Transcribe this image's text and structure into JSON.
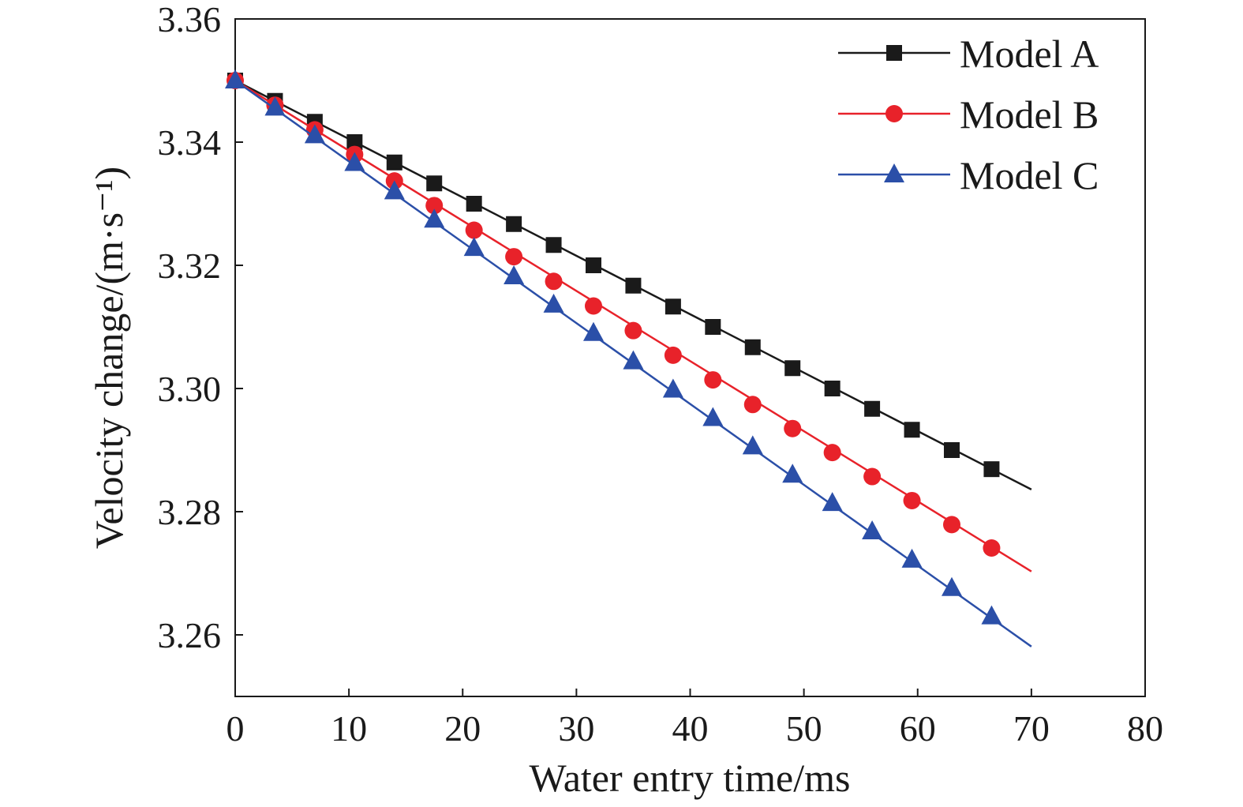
{
  "chart_data": {
    "type": "line",
    "xlabel": "Water entry time/ms",
    "ylabel": "Velocity change/(m·s⁻¹)",
    "xlim": [
      0,
      80
    ],
    "ylim": [
      3.25,
      3.36
    ],
    "xticks": [
      "0",
      "10",
      "20",
      "30",
      "40",
      "50",
      "60",
      "70",
      "80"
    ],
    "yticks": [
      "3.26",
      "3.28",
      "3.30",
      "3.32",
      "3.34",
      "3.36"
    ],
    "grid": false,
    "legend_position": "top-right",
    "series": [
      {
        "name": "Model A",
        "color": "#1a1a1a",
        "marker": "square",
        "line": [
          [
            0,
            3.35
          ],
          [
            70,
            3.2836
          ]
        ],
        "x": [
          0,
          3.5,
          7,
          10.5,
          14,
          17.5,
          21,
          24.5,
          28,
          31.5,
          35,
          38.5,
          42,
          45.5,
          49,
          52.5,
          56,
          59.5,
          63,
          66.5
        ],
        "y": [
          3.35,
          3.3467,
          3.3433,
          3.34,
          3.3367,
          3.3333,
          3.33,
          3.3267,
          3.3233,
          3.32,
          3.3167,
          3.3133,
          3.31,
          3.3067,
          3.3033,
          3.3,
          3.2967,
          3.2933,
          3.29,
          3.2869
        ]
      },
      {
        "name": "Model B",
        "color": "#e8222a",
        "marker": "circle",
        "line": [
          [
            0,
            3.35
          ],
          [
            70,
            3.2703
          ]
        ],
        "x": [
          0,
          3.5,
          7,
          10.5,
          14,
          17.5,
          21,
          24.5,
          28,
          31.5,
          35,
          38.5,
          42,
          45.5,
          49,
          52.5,
          56,
          59.5,
          63,
          66.5
        ],
        "y": [
          3.35,
          3.346,
          3.342,
          3.338,
          3.3337,
          3.3297,
          3.3257,
          3.3214,
          3.3174,
          3.3134,
          3.3094,
          3.3054,
          3.3014,
          3.2974,
          3.2935,
          3.2896,
          3.2857,
          3.2818,
          3.2779,
          3.2741
        ]
      },
      {
        "name": "Model C",
        "color": "#2b4fa8",
        "marker": "triangle",
        "line": [
          [
            0,
            3.35
          ],
          [
            70,
            3.2581
          ]
        ],
        "x": [
          0,
          3.5,
          7,
          10.5,
          14,
          17.5,
          21,
          24.5,
          28,
          31.5,
          35,
          38.5,
          42,
          45.5,
          49,
          52.5,
          56,
          59.5,
          63,
          66.5
        ],
        "y": [
          3.35,
          3.3456,
          3.3411,
          3.3366,
          3.332,
          3.3274,
          3.3228,
          3.3182,
          3.3136,
          3.309,
          3.3044,
          3.2998,
          3.2952,
          3.2906,
          3.286,
          3.2814,
          3.2768,
          3.2722,
          3.2676,
          3.263
        ]
      }
    ]
  }
}
